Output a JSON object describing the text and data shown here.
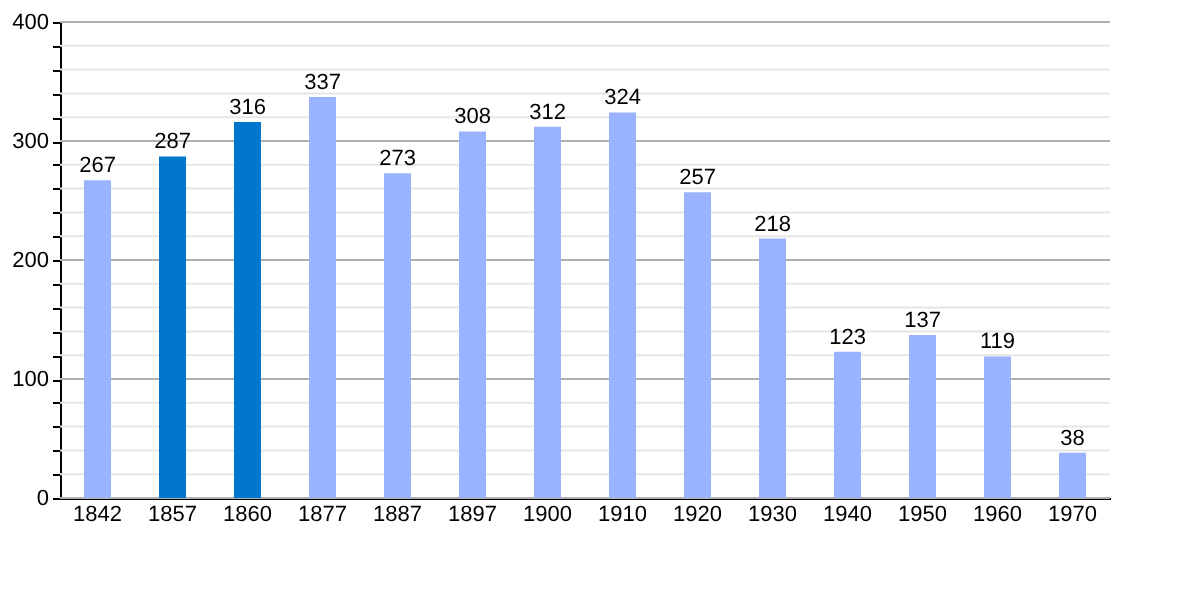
{
  "chart_data": {
    "type": "bar",
    "categories": [
      "1842",
      "1857",
      "1860",
      "1877",
      "1887",
      "1897",
      "1900",
      "1910",
      "1920",
      "1930",
      "1940",
      "1950",
      "1960",
      "1970"
    ],
    "values": [
      267,
      287,
      316,
      337,
      273,
      308,
      312,
      324,
      257,
      218,
      123,
      137,
      119,
      38
    ],
    "colors": [
      "#99b3ff",
      "#0077cc",
      "#0077cc",
      "#99b3ff",
      "#99b3ff",
      "#99b3ff",
      "#99b3ff",
      "#99b3ff",
      "#99b3ff",
      "#99b3ff",
      "#99b3ff",
      "#99b3ff",
      "#99b3ff",
      "#99b3ff"
    ],
    "ylim": [
      0,
      400
    ],
    "yticks": [
      0,
      {
        "value": 20,
        "label": null
      },
      {
        "value": 40,
        "label": null
      },
      {
        "value": 60,
        "label": null
      },
      {
        "value": 80,
        "label": null
      },
      100,
      {
        "value": 120,
        "label": null
      },
      {
        "value": 140,
        "label": null
      },
      {
        "value": 160,
        "label": null
      },
      {
        "value": 180,
        "label": null
      },
      200,
      {
        "value": 220,
        "label": null
      },
      {
        "value": 240,
        "label": null
      },
      {
        "value": 260,
        "label": null
      },
      {
        "value": 280,
        "label": null
      },
      300,
      {
        "value": 320,
        "label": null
      },
      {
        "value": 340,
        "label": null
      },
      {
        "value": 360,
        "label": null
      },
      {
        "value": 380,
        "label": null
      },
      400
    ],
    "grid": true,
    "data_labels": true
  }
}
